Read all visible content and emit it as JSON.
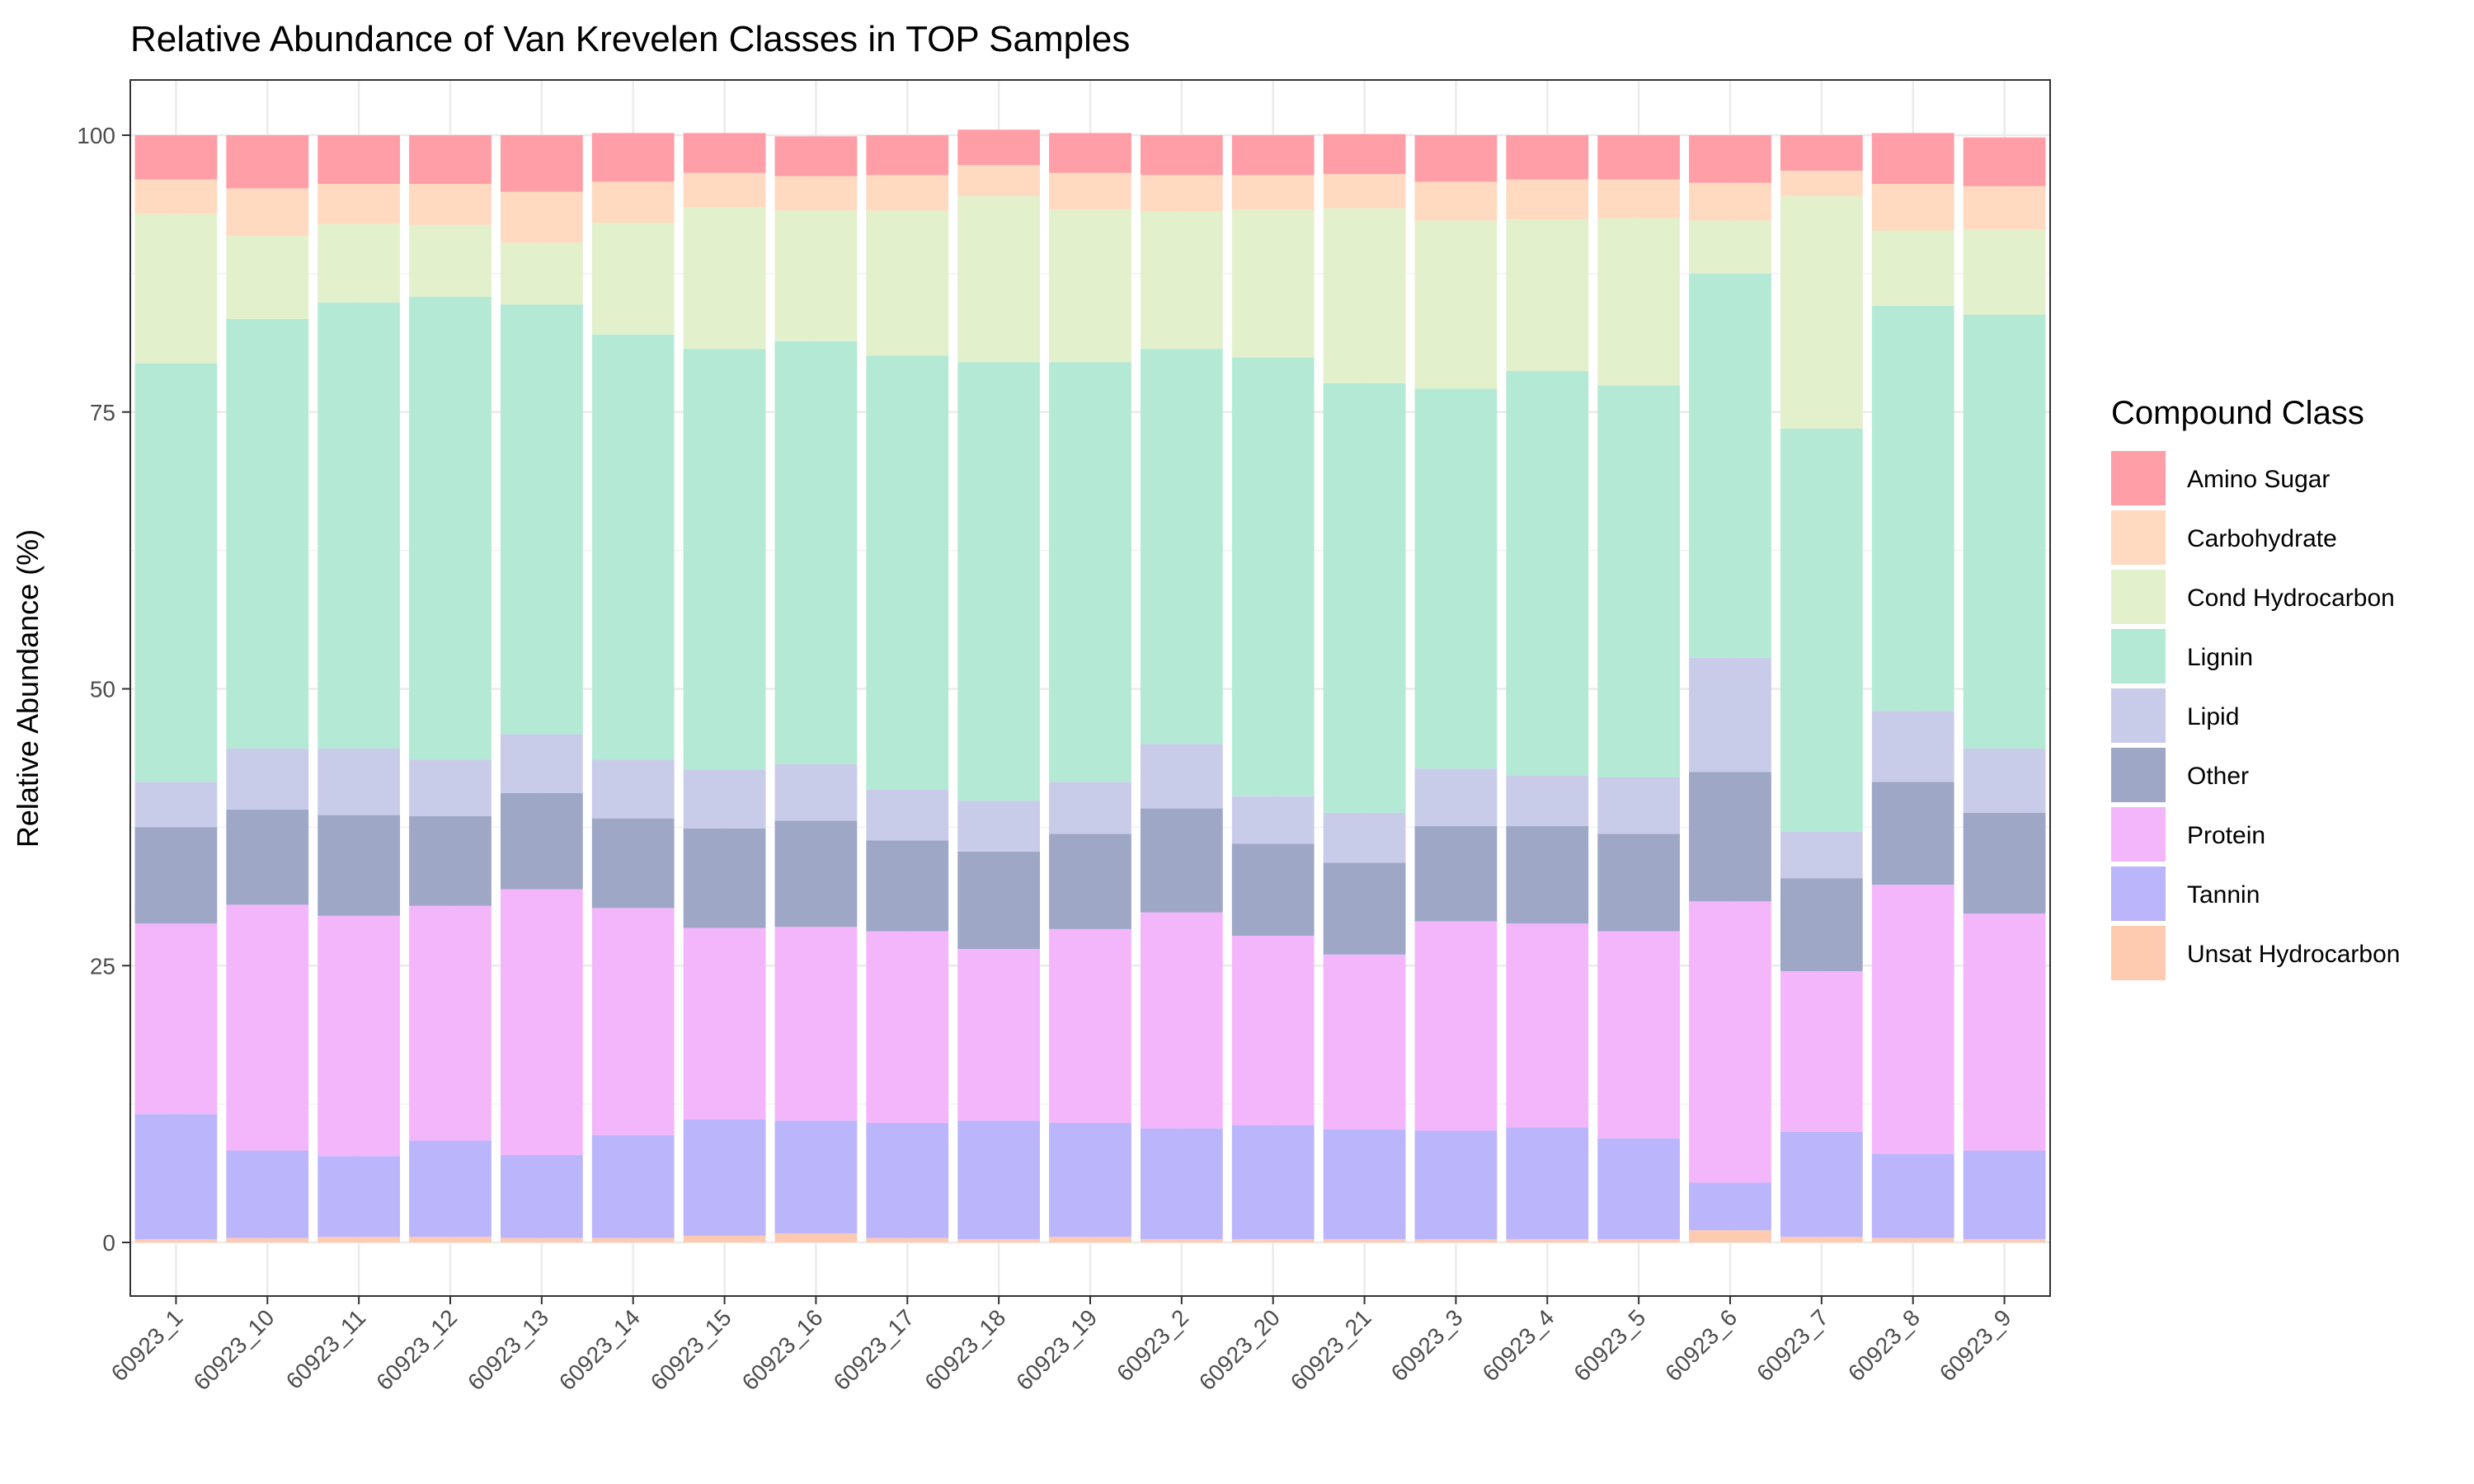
{
  "chart_data": {
    "type": "bar",
    "stacked": true,
    "title": "Relative Abundance of Van Krevelen Classes in TOP Samples",
    "xlabel": "",
    "ylabel": "Relative Abundance (%)",
    "ylim": [
      0,
      100
    ],
    "yticks": [
      "0",
      "25",
      "50",
      "75",
      "100"
    ],
    "grid": true,
    "legend": {
      "title": "Compound Class",
      "position": "right"
    },
    "categories": [
      "60923_1",
      "60923_10",
      "60923_11",
      "60923_12",
      "60923_13",
      "60923_14",
      "60923_15",
      "60923_16",
      "60923_17",
      "60923_18",
      "60923_19",
      "60923_2",
      "60923_20",
      "60923_21",
      "60923_3",
      "60923_4",
      "60923_5",
      "60923_6",
      "60923_7",
      "60923_8",
      "60923_9"
    ],
    "series": [
      {
        "name": "Amino Sugar",
        "color": "#ff9ea6",
        "values": [
          4.0,
          4.8,
          4.4,
          4.4,
          5.1,
          4.4,
          3.6,
          3.6,
          3.6,
          3.2,
          3.6,
          3.6,
          3.6,
          3.6,
          4.2,
          4.0,
          4.0,
          4.3,
          3.2,
          4.6,
          4.4
        ]
      },
      {
        "name": "Carbohydrate",
        "color": "#ffd9c0",
        "values": [
          3.1,
          4.3,
          3.6,
          3.7,
          4.6,
          3.7,
          3.1,
          3.1,
          3.2,
          2.8,
          3.3,
          3.3,
          3.1,
          3.1,
          3.5,
          3.6,
          3.5,
          3.4,
          2.3,
          4.2,
          3.9
        ]
      },
      {
        "name": "Cond Hydrocarbon",
        "color": "#e3f0cc",
        "values": [
          13.5,
          7.5,
          7.1,
          6.5,
          5.6,
          10.1,
          12.8,
          11.8,
          13.1,
          15.0,
          13.8,
          12.4,
          13.4,
          15.8,
          15.2,
          13.7,
          15.1,
          4.8,
          21.0,
          6.8,
          7.7
        ]
      },
      {
        "name": "Lignin",
        "color": "#b4e9d5",
        "values": [
          37.8,
          38.8,
          40.3,
          41.8,
          38.8,
          38.4,
          38.0,
          38.2,
          39.2,
          39.6,
          37.9,
          35.7,
          39.6,
          38.8,
          34.3,
          36.5,
          35.4,
          34.7,
          36.4,
          36.6,
          39.2
        ]
      },
      {
        "name": "Lipid",
        "color": "#c9cce9",
        "values": [
          4.1,
          5.5,
          6.0,
          5.1,
          5.3,
          5.3,
          5.3,
          5.1,
          4.6,
          4.6,
          4.7,
          5.8,
          4.3,
          4.5,
          5.2,
          4.6,
          5.1,
          10.3,
          4.2,
          6.4,
          5.8
        ]
      },
      {
        "name": "Other",
        "color": "#9ea8c6",
        "values": [
          8.7,
          8.6,
          9.1,
          8.1,
          8.7,
          8.1,
          9.0,
          9.6,
          8.2,
          8.8,
          8.6,
          9.4,
          8.3,
          8.3,
          8.6,
          8.8,
          8.8,
          11.7,
          8.4,
          9.3,
          9.1
        ]
      },
      {
        "name": "Protein",
        "color": "#f4b6fa",
        "values": [
          17.2,
          22.2,
          21.7,
          21.2,
          24.0,
          20.5,
          17.3,
          17.5,
          17.3,
          15.5,
          17.5,
          19.5,
          17.1,
          15.8,
          18.9,
          18.4,
          18.7,
          25.4,
          14.5,
          24.3,
          21.4
        ]
      },
      {
        "name": "Tannin",
        "color": "#bbb5fb",
        "values": [
          11.3,
          7.9,
          7.3,
          8.7,
          7.5,
          9.3,
          10.5,
          10.2,
          10.4,
          10.7,
          10.3,
          10.0,
          10.3,
          9.9,
          9.8,
          10.1,
          9.1,
          4.3,
          9.5,
          7.6,
          8.0
        ]
      },
      {
        "name": "Unsat Hydrocarbon",
        "color": "#ffcbb0",
        "values": [
          0.3,
          0.4,
          0.5,
          0.5,
          0.4,
          0.4,
          0.6,
          0.8,
          0.4,
          0.3,
          0.5,
          0.3,
          0.3,
          0.3,
          0.3,
          0.3,
          0.3,
          1.1,
          0.5,
          0.4,
          0.3
        ]
      }
    ]
  }
}
